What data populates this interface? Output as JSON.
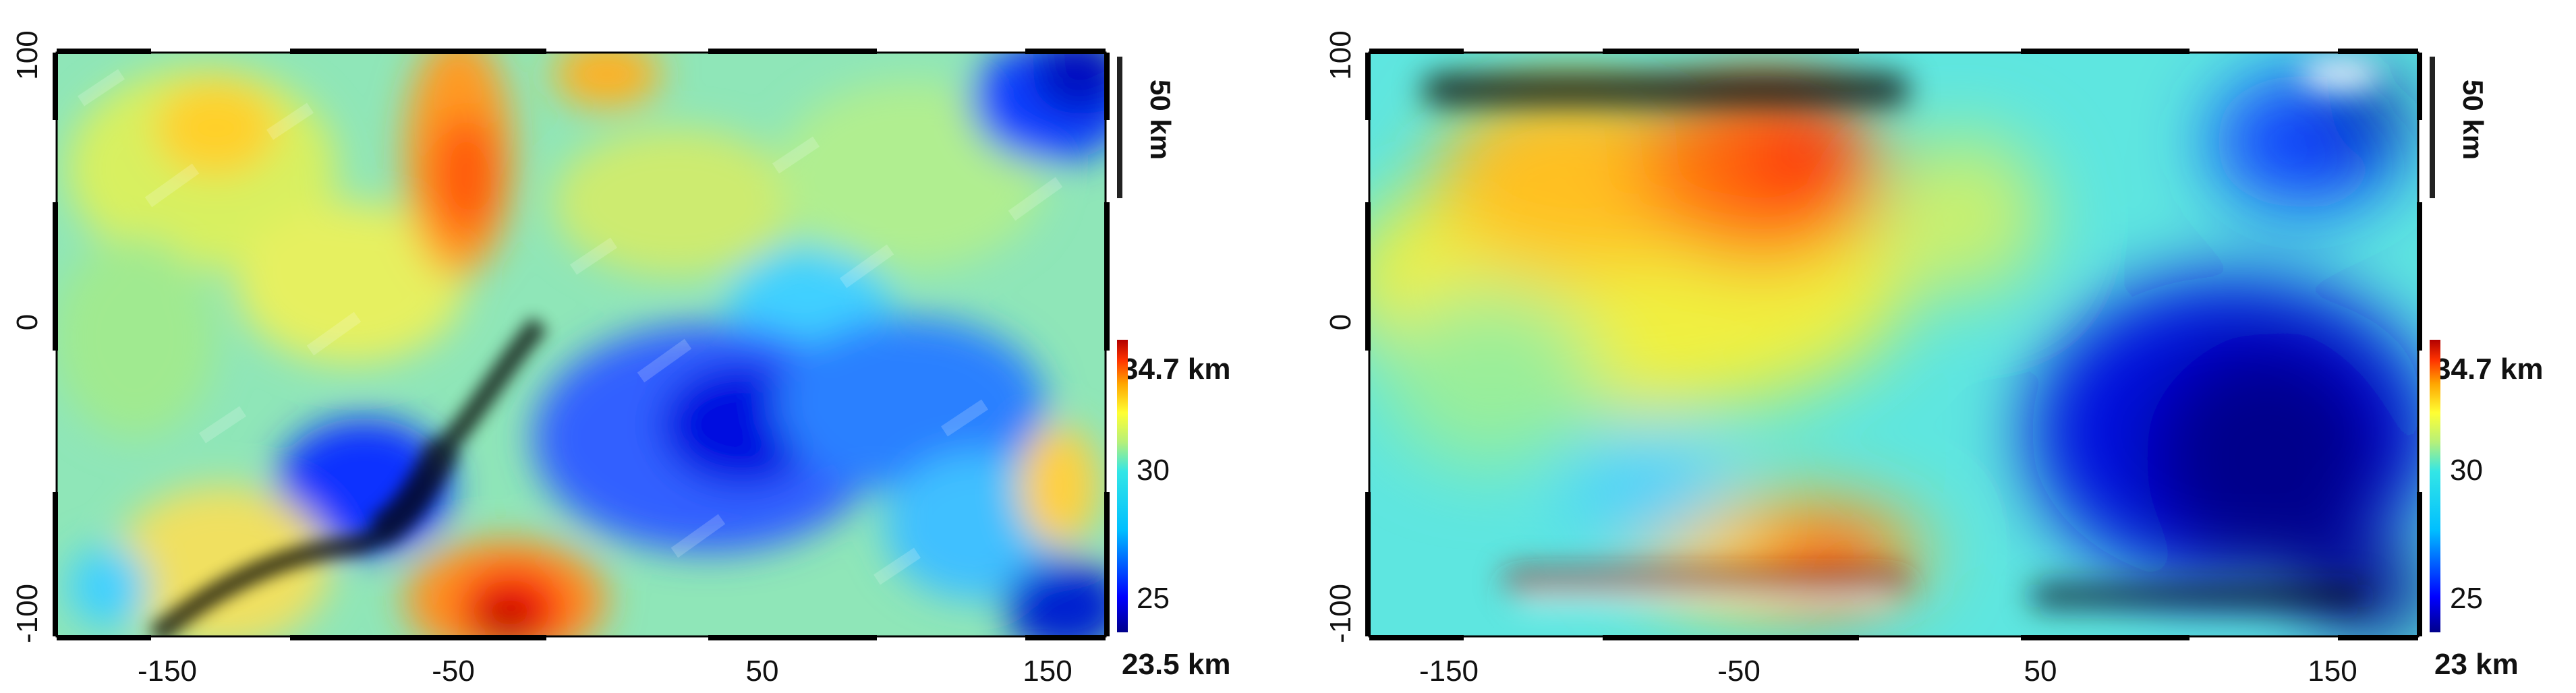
{
  "panels": [
    {
      "id": "left",
      "map_kind": "textured",
      "x_ticks": [
        "-150",
        "-50",
        "50",
        "150"
      ],
      "y_ticks": [
        "100",
        "0",
        "-100"
      ],
      "x_range": [
        -200,
        200
      ],
      "y_range": [
        -110,
        100
      ],
      "colorbar": {
        "max_label": "34.7 km",
        "min_label": "23.5 km",
        "ticks": [
          "30",
          "25"
        ],
        "max_value": 34.7,
        "min_value": 23.5,
        "tick_values": [
          30,
          25
        ]
      },
      "scale_bar": {
        "label": "50 km",
        "length_km": 50
      }
    },
    {
      "id": "right",
      "map_kind": "smooth",
      "x_ticks": [
        "-150",
        "-50",
        "50",
        "150"
      ],
      "y_ticks": [
        "100",
        "0",
        "-100"
      ],
      "x_range": [
        -200,
        200
      ],
      "y_range": [
        -110,
        100
      ],
      "colorbar": {
        "max_label": "34.7 km",
        "min_label": "23 km",
        "ticks": [
          "30",
          "25"
        ],
        "max_value": 34.7,
        "min_value": 23.0,
        "tick_values": [
          30,
          25
        ]
      },
      "scale_bar": {
        "label": "50 km",
        "length_km": 50
      }
    }
  ],
  "colors": {
    "colormap": [
      "#00008b",
      "#0000ff",
      "#00bfff",
      "#33e6e6",
      "#b6f07a",
      "#ffff33",
      "#ffa500",
      "#ff3300",
      "#b20000"
    ],
    "frame": "#000000",
    "text": "#111111"
  }
}
